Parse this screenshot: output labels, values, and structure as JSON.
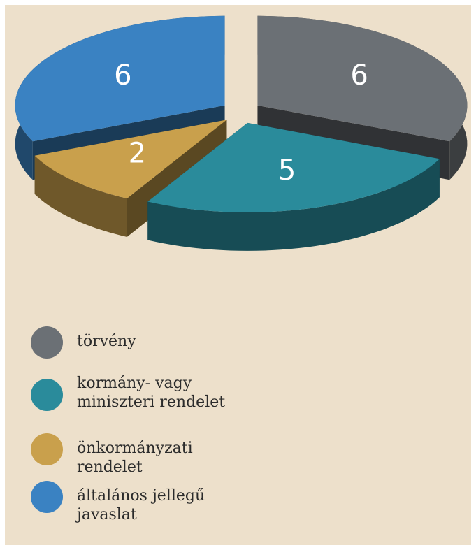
{
  "chart_data": {
    "type": "pie3d",
    "categories": [
      "törvény",
      "kormány- vagy miniszteri rendelet",
      "önkormányzati rendelet",
      "általános jellegű javaslat"
    ],
    "values": [
      6,
      5,
      2,
      6
    ],
    "colors": [
      "#6b7075",
      "#2a8b9b",
      "#c9a04c",
      "#3a82c2"
    ]
  }
}
